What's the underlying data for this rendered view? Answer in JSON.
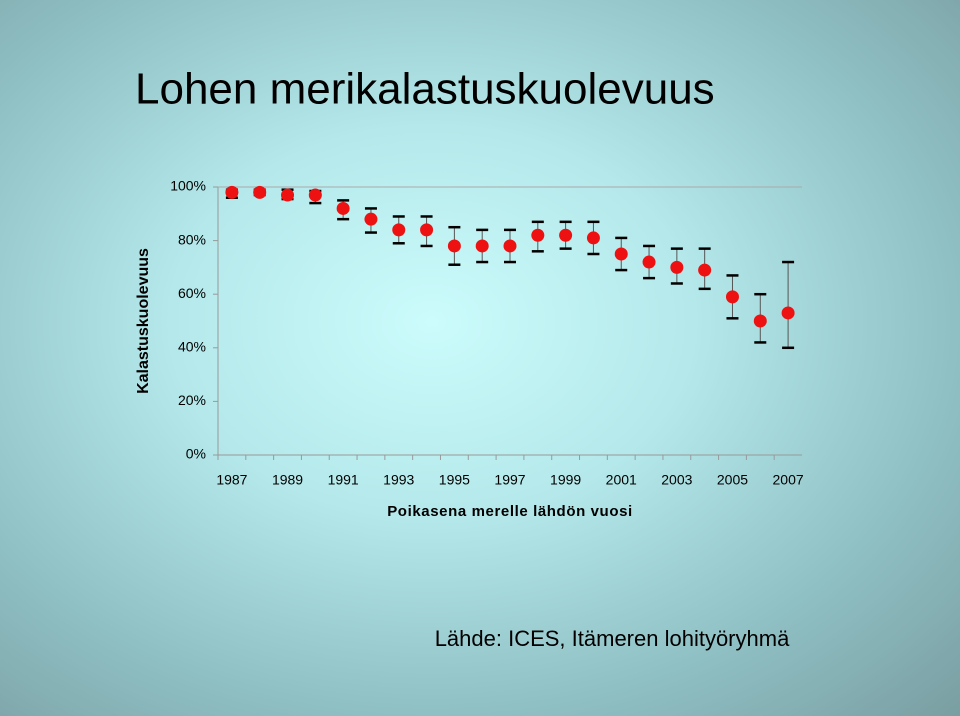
{
  "chart_data": {
    "type": "errorpoint",
    "title": "Lohen merikalastuskuolevuus",
    "y_label": "Kalastuskuolevuus",
    "x_label": "Poikasena merelle lähdön vuosi",
    "source": "Lähde: ICES, Itämeren lohityöryhmä",
    "categories": [
      "1987",
      null,
      "1989",
      null,
      "1991",
      null,
      "1993",
      null,
      "1995",
      null,
      "1997",
      null,
      "1999",
      null,
      "2001",
      null,
      "2003",
      null,
      "2005",
      null,
      "2007"
    ],
    "values": [
      98,
      98,
      97,
      97,
      92,
      88,
      84,
      84,
      78,
      78,
      78,
      82,
      82,
      81,
      75,
      72,
      70,
      69,
      59,
      50,
      53
    ],
    "high": [
      99,
      99,
      99,
      98.5,
      95,
      92,
      89,
      89,
      85,
      84,
      84,
      87,
      87,
      87,
      81,
      78,
      77,
      77,
      67,
      60,
      72
    ],
    "low": [
      96,
      97,
      95.5,
      94,
      88,
      83,
      79,
      78,
      71,
      72,
      72,
      76,
      77,
      75,
      69,
      66,
      64,
      62,
      51,
      42,
      40
    ],
    "color": "#ee1111",
    "ylim": [
      0,
      100
    ],
    "yticks": [
      {
        "value": 0,
        "label": "0%"
      },
      {
        "value": 20,
        "label": "20%"
      },
      {
        "value": 40,
        "label": "40%"
      },
      {
        "value": 60,
        "label": "60%"
      },
      {
        "value": 80,
        "label": "80%"
      },
      {
        "value": 100,
        "label": "100%"
      }
    ]
  }
}
